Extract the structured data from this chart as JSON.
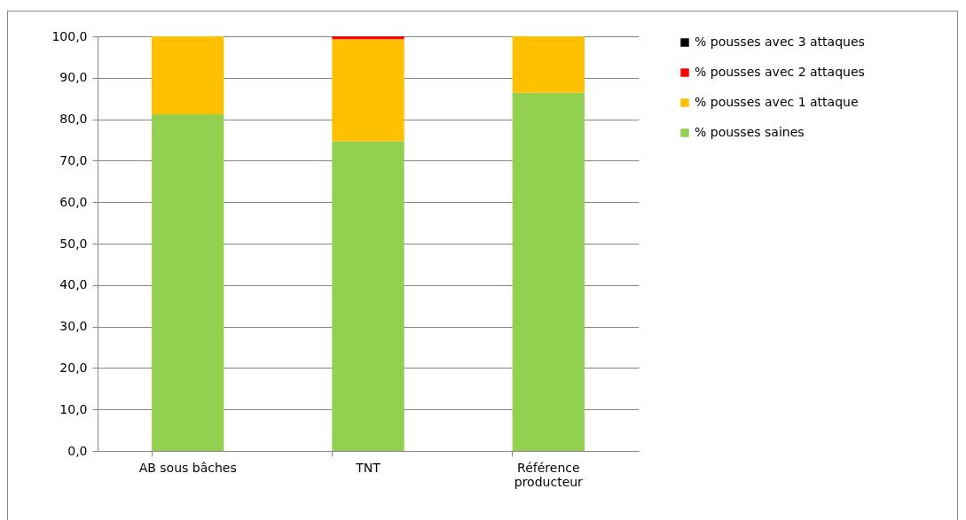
{
  "chart_data": {
    "type": "bar",
    "stacked": true,
    "categories": [
      "AB sous bâches",
      "TNT",
      "Référence producteur"
    ],
    "series": [
      {
        "name": "% pousses saines",
        "color": "#92d050",
        "values": [
          81.2,
          74.7,
          86.4
        ]
      },
      {
        "name": "% pousses avec 1 attaque",
        "color": "#ffc000",
        "values": [
          18.8,
          24.6,
          13.6
        ]
      },
      {
        "name": "% pousses avec 2 attaques",
        "color": "#ff0000",
        "values": [
          0,
          0.7,
          0
        ]
      },
      {
        "name": "% pousses avec 3 attaques",
        "color": "#000000",
        "values": [
          0,
          0,
          0
        ]
      }
    ],
    "ylim": [
      0,
      100
    ],
    "yticks": [
      {
        "value": 0,
        "label": "0,0"
      },
      {
        "value": 10,
        "label": "10,0"
      },
      {
        "value": 20,
        "label": "20,0"
      },
      {
        "value": 30,
        "label": "30,0"
      },
      {
        "value": 40,
        "label": "40,0"
      },
      {
        "value": 50,
        "label": "50,0"
      },
      {
        "value": 60,
        "label": "60,0"
      },
      {
        "value": 70,
        "label": "70,0"
      },
      {
        "value": 80,
        "label": "80,0"
      },
      {
        "value": 90,
        "label": "90,0"
      },
      {
        "value": 100,
        "label": "100,0"
      }
    ],
    "grid": "y",
    "legend": "right"
  }
}
